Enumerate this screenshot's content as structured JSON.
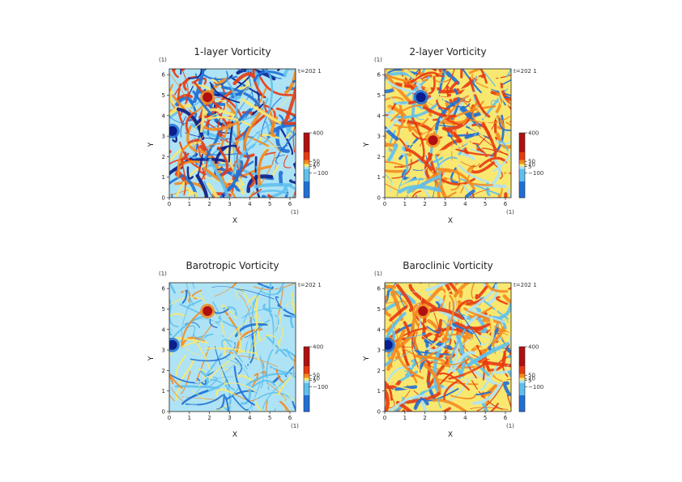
{
  "chart_data": [
    {
      "type": "heatmap",
      "title": "1-layer Vorticity",
      "xlabel": "X",
      "ylabel": "Y",
      "x_unit": "(1)",
      "y_unit": "(1)",
      "time_label": "t=202 1",
      "xlim": [
        0,
        6.283
      ],
      "ylim": [
        0,
        6.283
      ],
      "x_ticks": [
        "0",
        "1",
        "2",
        "3",
        "4",
        "5",
        "6"
      ],
      "y_ticks": [
        "0",
        "1",
        "2",
        "3",
        "4",
        "5",
        "6"
      ],
      "colorbar": {
        "labels": [
          "400",
          "50",
          "10",
          "5",
          "−100"
        ],
        "range": [
          -100,
          400
        ]
      },
      "features": [
        {
          "x": 1.9,
          "y": 4.9,
          "value": 400,
          "kind": "vortex"
        },
        {
          "x": 0.15,
          "y": 3.25,
          "value": -100,
          "kind": "vortex"
        }
      ]
    },
    {
      "type": "heatmap",
      "title": "2-layer Vorticity",
      "xlabel": "X",
      "ylabel": "Y",
      "x_unit": "(1)",
      "y_unit": "(1)",
      "time_label": "t=202 1",
      "xlim": [
        0,
        6.283
      ],
      "ylim": [
        0,
        6.283
      ],
      "x_ticks": [
        "0",
        "1",
        "2",
        "3",
        "4",
        "5",
        "6"
      ],
      "y_ticks": [
        "0",
        "1",
        "2",
        "3",
        "4",
        "5",
        "6"
      ],
      "colorbar": {
        "labels": [
          "400",
          "50",
          "10",
          "5",
          "−100"
        ],
        "range": [
          -100,
          400
        ]
      },
      "features": [
        {
          "x": 1.8,
          "y": 4.9,
          "value": -100,
          "kind": "vortex"
        },
        {
          "x": 2.4,
          "y": 2.8,
          "value": 300,
          "kind": "vortex"
        }
      ]
    },
    {
      "type": "heatmap",
      "title": "Barotropic Vorticity",
      "xlabel": "X",
      "ylabel": "Y",
      "x_unit": "(1)",
      "y_unit": "(1)",
      "time_label": "t=202 1",
      "xlim": [
        0,
        6.283
      ],
      "ylim": [
        0,
        6.283
      ],
      "x_ticks": [
        "0",
        "1",
        "2",
        "3",
        "4",
        "5",
        "6"
      ],
      "y_ticks": [
        "0",
        "1",
        "2",
        "3",
        "4",
        "5",
        "6"
      ],
      "colorbar": {
        "labels": [
          "400",
          "50",
          "10",
          "5",
          "−100"
        ],
        "range": [
          -100,
          400
        ]
      },
      "features": [
        {
          "x": 1.9,
          "y": 4.9,
          "value": 400,
          "kind": "vortex"
        },
        {
          "x": 0.15,
          "y": 3.25,
          "value": -100,
          "kind": "vortex"
        }
      ]
    },
    {
      "type": "heatmap",
      "title": "Baroclinic Vorticity",
      "xlabel": "X",
      "ylabel": "Y",
      "x_unit": "(1)",
      "y_unit": "(1)",
      "time_label": "t=202 1",
      "xlim": [
        0,
        6.283
      ],
      "ylim": [
        0,
        6.283
      ],
      "x_ticks": [
        "0",
        "1",
        "2",
        "3",
        "4",
        "5",
        "6"
      ],
      "y_ticks": [
        "0",
        "1",
        "2",
        "3",
        "4",
        "5",
        "6"
      ],
      "colorbar": {
        "labels": [
          "400",
          "50",
          "10",
          "5",
          "−100"
        ],
        "range": [
          -100,
          400
        ]
      },
      "features": [
        {
          "x": 1.9,
          "y": 4.9,
          "value": 400,
          "kind": "vortex"
        },
        {
          "x": 0.15,
          "y": 3.25,
          "value": -100,
          "kind": "vortex"
        }
      ]
    }
  ],
  "colors": {
    "dark_red": "#b01010",
    "red": "#e83a10",
    "orange": "#f58a1f",
    "yellow": "#f8e870",
    "light_blue": "#aee3f5",
    "cyan": "#5fc0ee",
    "blue": "#1f6fd6",
    "dark_blue": "#0a1e8c",
    "axis": "#222222"
  },
  "styles": [
    "cold",
    "warm",
    "pale",
    "base"
  ]
}
